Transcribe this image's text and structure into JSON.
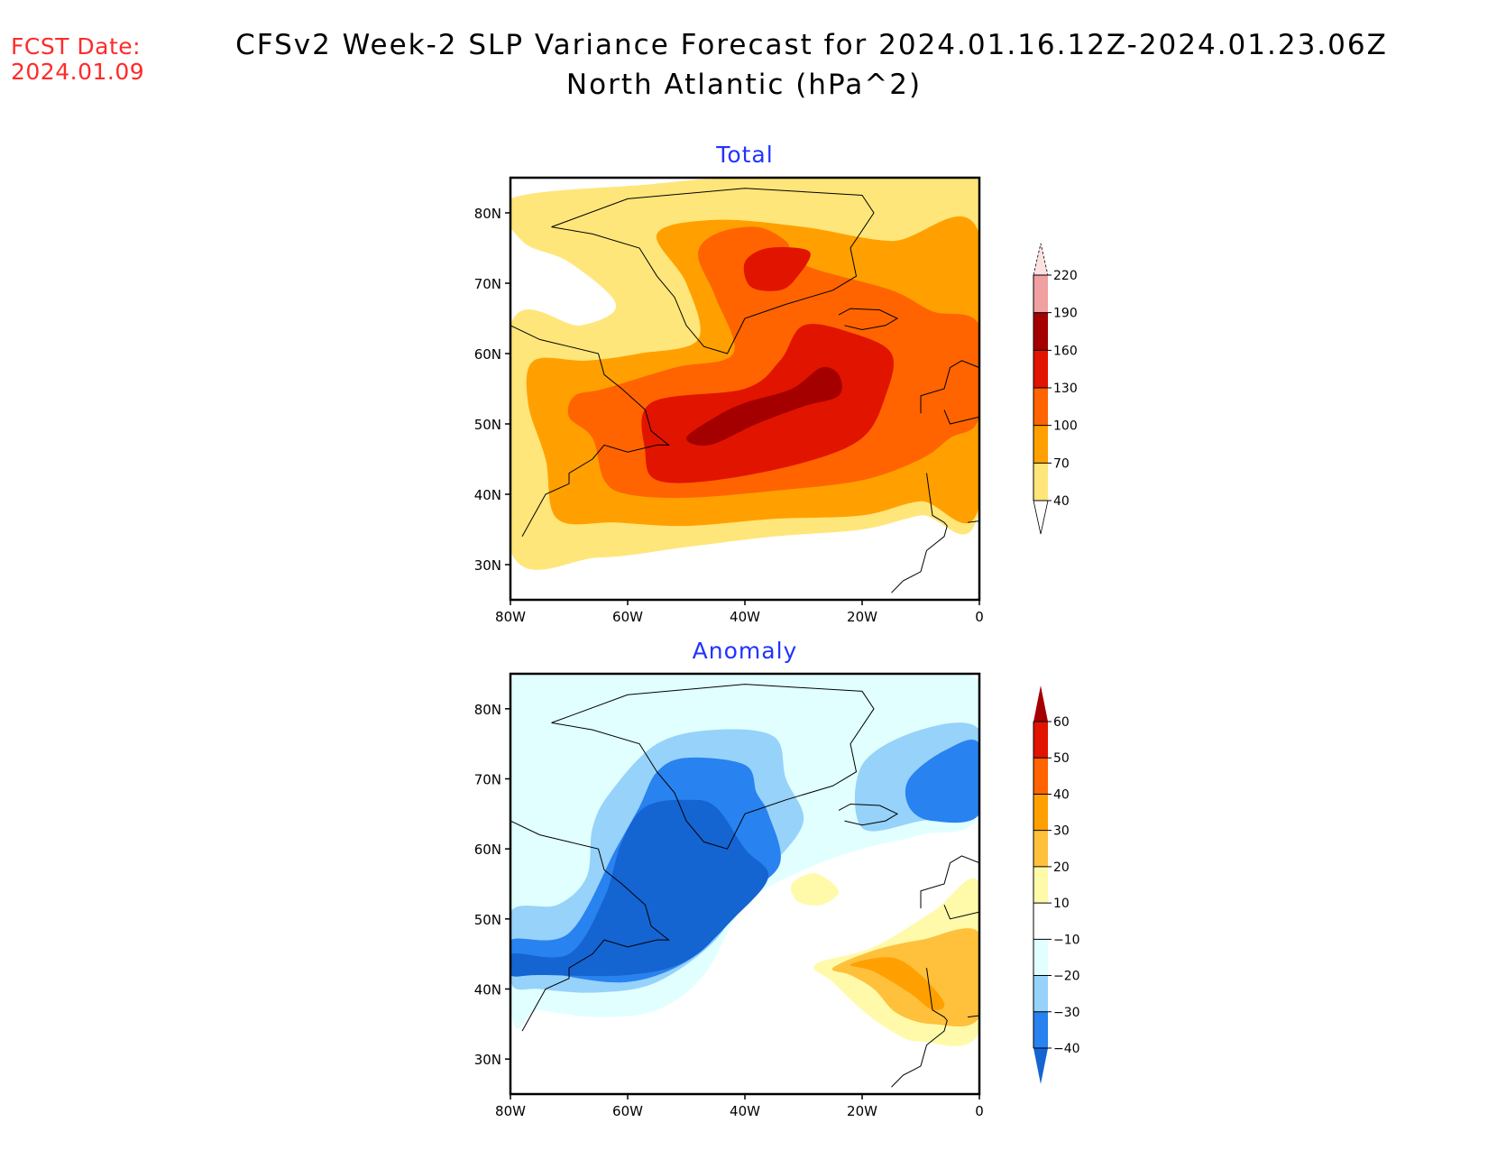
{
  "header": {
    "fcst_label": "FCST Date:",
    "fcst_date": "2024.01.09",
    "title_line1": "CFSv2 Week-2 SLP Variance Forecast for 2024.01.16.12Z-2024.01.23.06Z",
    "title_line2": "North Atlantic (hPa^2)"
  },
  "chart_data": [
    {
      "type": "heatmap",
      "title": "Total",
      "units": "hPa^2",
      "xlabel": "",
      "ylabel": "",
      "xlim": [
        -80,
        0
      ],
      "ylim": [
        25,
        85
      ],
      "x_ticks": [
        "80W",
        "60W",
        "40W",
        "20W",
        "0"
      ],
      "x_tick_values": [
        -80,
        -60,
        -40,
        -20,
        0
      ],
      "y_ticks": [
        "80N",
        "70N",
        "60N",
        "50N",
        "40N",
        "30N"
      ],
      "y_tick_values": [
        80,
        70,
        60,
        50,
        40,
        30
      ],
      "colorbar": {
        "levels": [
          "40",
          "70",
          "100",
          "130",
          "160",
          "190",
          "220"
        ],
        "colors": [
          "#ffe67a",
          "#ffa000",
          "#ff6400",
          "#e11400",
          "#a50000",
          "#f0a0a0",
          "#fde0e0"
        ],
        "extend_low_color": "#ffffff",
        "extend_high_color": "#fde0e0"
      },
      "features": [
        {
          "name": "max-band",
          "value_range": "160-190",
          "center": [
            -35,
            52
          ]
        },
        {
          "name": "secondary-max",
          "value_range": "130-160",
          "center": [
            -38,
            73
          ]
        }
      ]
    },
    {
      "type": "heatmap",
      "title": "Anomaly",
      "units": "hPa^2",
      "xlabel": "",
      "ylabel": "",
      "xlim": [
        -80,
        0
      ],
      "ylim": [
        25,
        85
      ],
      "x_ticks": [
        "80W",
        "60W",
        "40W",
        "20W",
        "0"
      ],
      "x_tick_values": [
        -80,
        -60,
        -40,
        -20,
        0
      ],
      "y_ticks": [
        "80N",
        "70N",
        "60N",
        "50N",
        "40N",
        "30N"
      ],
      "y_tick_values": [
        80,
        70,
        60,
        50,
        40,
        30
      ],
      "colorbar": {
        "levels": [
          "-40",
          "-30",
          "-20",
          "-10",
          "10",
          "20",
          "30",
          "40",
          "50",
          "60"
        ],
        "colors": [
          "#2882f0",
          "#96d2fa",
          "#e1ffff",
          "#ffffff",
          "#fffaaa",
          "#ffc03c",
          "#ffa000",
          "#ff6400",
          "#e11400"
        ],
        "extend_low_color": "#1464d2",
        "extend_high_color": "#a50000"
      },
      "features": [
        {
          "name": "negative-min",
          "value_range": "below -40",
          "center": [
            -55,
            52
          ]
        },
        {
          "name": "positive-max",
          "value_range": "30-40",
          "center": [
            -15,
            44
          ]
        }
      ]
    }
  ]
}
